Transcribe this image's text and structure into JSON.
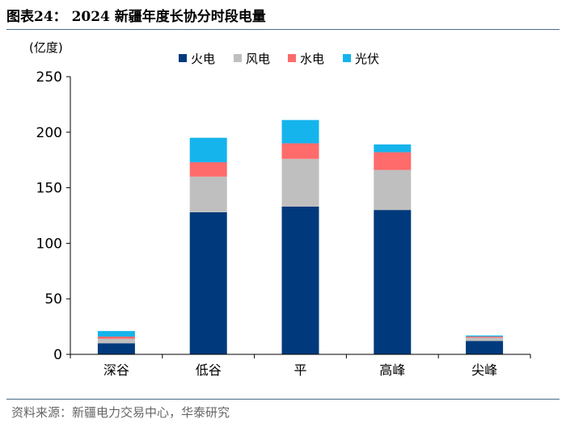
{
  "figure": {
    "title": "图表24：  2024 新疆年度长协分时段电量",
    "source": "资料来源：新疆电力交易中心，华泰研究"
  },
  "chart_data": {
    "type": "bar",
    "stacked": true,
    "title": "",
    "xlabel": "",
    "ylabel": "(亿度)",
    "ylim": [
      0,
      250
    ],
    "yticks": [
      0,
      50,
      100,
      150,
      200,
      250
    ],
    "grid": false,
    "legend_position": "top-right",
    "categories": [
      "深谷",
      "低谷",
      "平",
      "高峰",
      "尖峰"
    ],
    "series": [
      {
        "name": "火电",
        "color": "#003a7c",
        "values": [
          10,
          128,
          133,
          130,
          12
        ]
      },
      {
        "name": "风电",
        "color": "#bfbfbf",
        "values": [
          4,
          32,
          43,
          36,
          3
        ]
      },
      {
        "name": "水电",
        "color": "#ff6b6b",
        "values": [
          2,
          13,
          14,
          16,
          1
        ]
      },
      {
        "name": "光伏",
        "color": "#16b4ec",
        "values": [
          5,
          22,
          21,
          7,
          1
        ]
      }
    ]
  }
}
